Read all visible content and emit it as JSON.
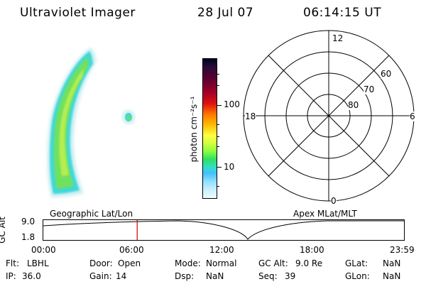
{
  "header": {
    "instrument": "Ultraviolet Imager",
    "date": "28 Jul 07",
    "time": "06:14:15 UT"
  },
  "colorbar": {
    "unit_label": "photon cm⁻²s⁻¹",
    "tick_100": "100",
    "tick_10": "10"
  },
  "polar_plot": {
    "mlt_top": "12",
    "mlt_left": "18",
    "mlt_right": "6",
    "mlt_bottom": "0",
    "lat_60": "60",
    "lat_70": "70",
    "lat_80": "80"
  },
  "timeline": {
    "left_title": "Geographic Lat/Lon",
    "right_title": "Apex MLat/MLT",
    "y_label": "GC Alt",
    "y_max": "9.0",
    "y_min": "1.8",
    "x_ticks": [
      "00:00",
      "06:00",
      "12:00",
      "18:00",
      "23:59"
    ],
    "current_time_hours": 6.24,
    "marker_color": "#cc0000"
  },
  "info": {
    "flt_label": "Flt:",
    "flt_value": "LBHL",
    "ip_label": "IP:",
    "ip_value": "36.0",
    "door_label": "Door:",
    "door_value": "Open",
    "gain_label": "Gain:",
    "gain_value": "14",
    "mode_label": "Mode:",
    "mode_value": "Normal",
    "dsp_label": "Dsp:",
    "dsp_value": "NaN",
    "gcalt_label": "GC Alt:",
    "gcalt_value": "9.0 Re",
    "seq_label": "Seq:",
    "seq_value": "39",
    "glat_label": "GLat:",
    "glat_value": "NaN",
    "glon_label": "GLon:",
    "glon_value": "NaN"
  }
}
